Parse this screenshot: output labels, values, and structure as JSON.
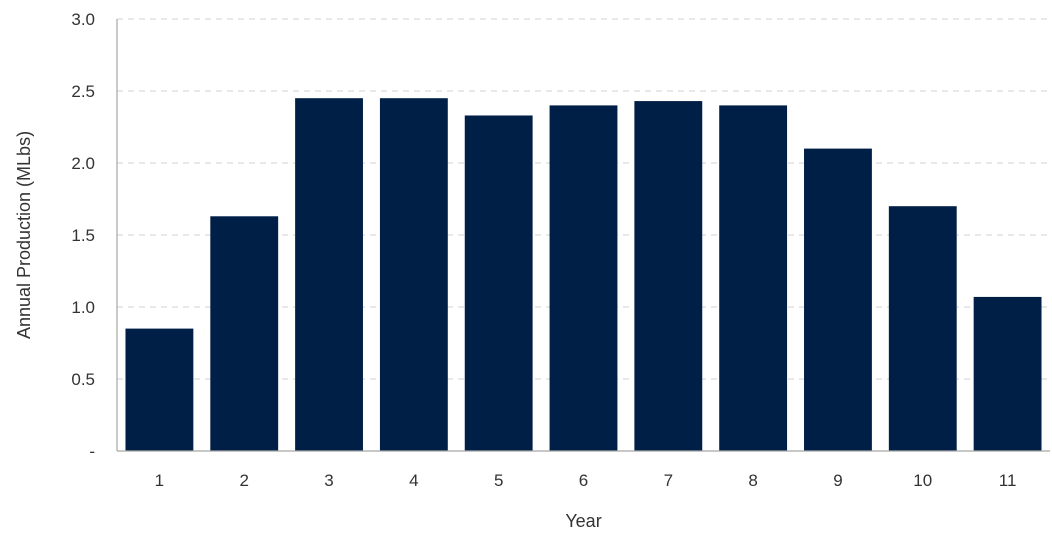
{
  "chart_data": {
    "type": "bar",
    "title": "",
    "xlabel": "Year",
    "ylabel": "Annual Production (MLbs)",
    "categories": [
      "1",
      "2",
      "3",
      "4",
      "5",
      "6",
      "7",
      "8",
      "9",
      "10",
      "11"
    ],
    "values": [
      0.85,
      1.63,
      2.45,
      2.45,
      2.33,
      2.4,
      2.43,
      2.4,
      2.1,
      1.7,
      1.07
    ],
    "ylim": [
      0,
      3.0
    ],
    "yticks": [
      {
        "value": 0,
        "label": "-"
      },
      {
        "value": 0.5,
        "label": "0.5"
      },
      {
        "value": 1.0,
        "label": "1.0"
      },
      {
        "value": 1.5,
        "label": "1.5"
      },
      {
        "value": 2.0,
        "label": "2.0"
      },
      {
        "value": 2.5,
        "label": "2.5"
      },
      {
        "value": 3.0,
        "label": "3.0"
      }
    ],
    "grid": "horizontal-dashed",
    "legend": "none",
    "colors": {
      "bar": "#001f47",
      "grid": "#d9d9d9",
      "axis": "#a6a6a6"
    }
  }
}
